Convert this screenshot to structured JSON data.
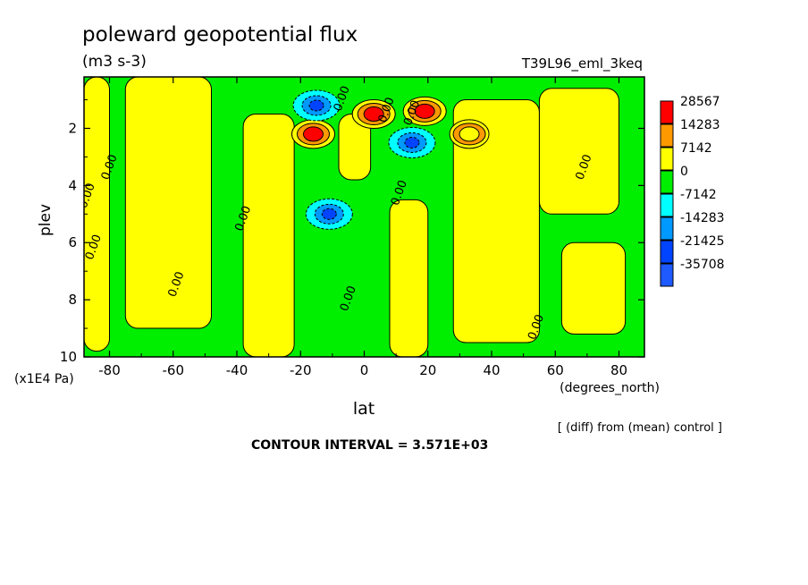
{
  "chart_data": {
    "type": "heatmap",
    "title": "poleward geopotential flux",
    "units": "(m3 s-3)",
    "run_label": "T39L96_eml_3keq",
    "xlabel": "lat",
    "xlabel_units": "(degrees_north)",
    "ylabel": "plev",
    "ylabel_units": "(x1E4 Pa)",
    "xlim": [
      -88,
      88
    ],
    "ylim": [
      10,
      0.2
    ],
    "xticks": [
      -80,
      -60,
      -40,
      -20,
      0,
      20,
      40,
      60,
      80
    ],
    "yticks": [
      2,
      4,
      6,
      8,
      10
    ],
    "legend": {
      "position": "right",
      "labels": [
        "28567",
        "14283",
        "7142",
        "0",
        "-7142",
        "-14283",
        "-21425",
        "-35708"
      ],
      "colors": [
        "#ff0000",
        "#ff9900",
        "#ffff00",
        "#00ee00",
        "#00ffff",
        "#0099ff",
        "#0044ff",
        "#1e5aff"
      ]
    },
    "contour_labels": [
      "0.00",
      "0.00",
      "0.00",
      "0.00",
      "0.00",
      "0.00",
      "0.00",
      "0.00",
      "0.00",
      "0.00",
      "0.00",
      "0.00"
    ],
    "footnote": "[ (diff) from (mean) control ]",
    "contour_interval": "CONTOUR INTERVAL = 3.571E+03",
    "regions": [
      {
        "kind": "pos",
        "lat_min": -88,
        "lat_max": -80,
        "plev_min": 0.2,
        "plev_max": 9.8
      },
      {
        "kind": "pos",
        "lat_min": -75,
        "lat_max": -48,
        "plev_min": 0.2,
        "plev_max": 9.0
      },
      {
        "kind": "pos",
        "lat_min": -38,
        "lat_max": -22,
        "plev_min": 1.5,
        "plev_max": 10.0
      },
      {
        "kind": "pos",
        "lat_min": -8,
        "lat_max": 2,
        "plev_min": 1.5,
        "plev_max": 3.8
      },
      {
        "kind": "pos",
        "lat_min": 8,
        "lat_max": 20,
        "plev_min": 4.5,
        "plev_max": 10.0
      },
      {
        "kind": "pos",
        "lat_min": 28,
        "lat_max": 55,
        "plev_min": 1.0,
        "plev_max": 9.5
      },
      {
        "kind": "pos",
        "lat_min": 55,
        "lat_max": 80,
        "plev_min": 0.6,
        "plev_max": 5.0
      },
      {
        "kind": "pos",
        "lat_min": 62,
        "lat_max": 82,
        "plev_min": 6.0,
        "plev_max": 9.2
      },
      {
        "kind": "max",
        "lat": -16,
        "plev": 2.2,
        "level": 28567
      },
      {
        "kind": "max",
        "lat": 3,
        "plev": 1.5,
        "level": 28567
      },
      {
        "kind": "max",
        "lat": 19,
        "plev": 1.4,
        "level": 28567
      },
      {
        "kind": "max",
        "lat": 33,
        "plev": 2.2,
        "level": 7142
      },
      {
        "kind": "min",
        "lat": -15,
        "plev": 1.2,
        "level": -21425
      },
      {
        "kind": "min",
        "lat": 15,
        "plev": 2.5,
        "level": -21425
      },
      {
        "kind": "min",
        "lat": -11,
        "plev": 5.0,
        "level": -14283
      }
    ]
  }
}
